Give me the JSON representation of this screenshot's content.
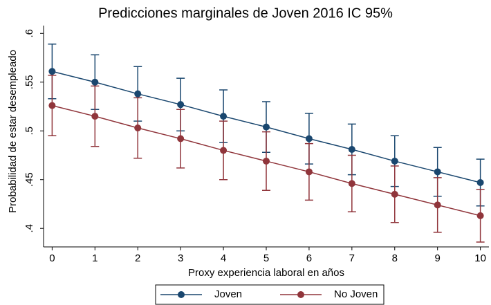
{
  "chart_data": {
    "type": "line",
    "title": "Predicciones marginales de Joven 2016 IC 95%",
    "x_label": "Proxy experiencia laboral en años",
    "y_label": "Probabilidad de estar desempleado",
    "x": [
      0,
      1,
      2,
      3,
      4,
      5,
      6,
      7,
      8,
      9,
      10
    ],
    "xlim": [
      -0.2,
      10.2
    ],
    "xticks": [
      0,
      1,
      2,
      3,
      4,
      5,
      6,
      7,
      8,
      9,
      10
    ],
    "ylim": [
      0.381,
      0.608
    ],
    "yticks": [
      {
        "value": 0.4,
        "label": ".4"
      },
      {
        "value": 0.45,
        "label": ".45"
      },
      {
        "value": 0.5,
        "label": ".5"
      },
      {
        "value": 0.55,
        "label": ".55"
      },
      {
        "value": 0.6,
        "label": ".6"
      }
    ],
    "legend": "bottom",
    "series": [
      {
        "name": "Joven",
        "color": "#1a476f",
        "values": [
          0.561,
          0.55,
          0.538,
          0.527,
          0.515,
          0.504,
          0.492,
          0.481,
          0.469,
          0.458,
          0.447
        ],
        "lower": [
          0.533,
          0.522,
          0.51,
          0.5,
          0.488,
          0.478,
          0.466,
          0.455,
          0.443,
          0.433,
          0.423
        ],
        "upper": [
          0.589,
          0.578,
          0.566,
          0.554,
          0.542,
          0.53,
          0.518,
          0.507,
          0.495,
          0.483,
          0.471
        ]
      },
      {
        "name": "No Joven",
        "color": "#90353b",
        "values": [
          0.526,
          0.515,
          0.503,
          0.492,
          0.48,
          0.469,
          0.458,
          0.446,
          0.435,
          0.424,
          0.413
        ],
        "lower": [
          0.495,
          0.484,
          0.472,
          0.462,
          0.45,
          0.439,
          0.429,
          0.417,
          0.406,
          0.396,
          0.386
        ],
        "upper": [
          0.557,
          0.546,
          0.534,
          0.522,
          0.51,
          0.499,
          0.487,
          0.475,
          0.464,
          0.452,
          0.44
        ]
      }
    ]
  }
}
